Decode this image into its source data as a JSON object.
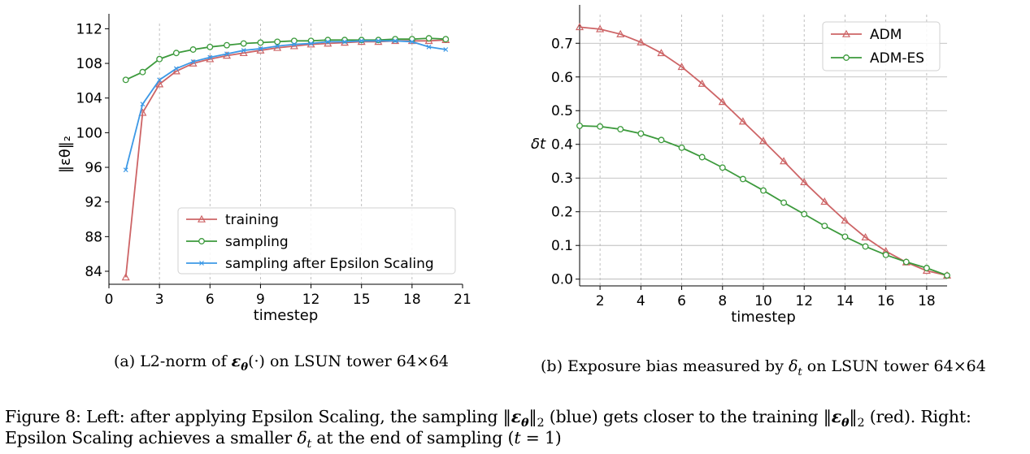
{
  "chart_data": [
    {
      "type": "line",
      "xlabel": "timestep",
      "ylabel": "‖εθ‖₂",
      "xlim": [
        0,
        21
      ],
      "ylim": [
        82.5,
        112.6
      ],
      "xticks": [
        0,
        3,
        6,
        9,
        12,
        15,
        18,
        21
      ],
      "yticks": [
        84,
        88,
        92,
        96,
        100,
        104,
        108,
        112
      ],
      "grid": "vertical dashed",
      "legend_placement": "bottom-right",
      "series": [
        {
          "name": "training",
          "color": "#cd6466",
          "marker": "triangle",
          "x": [
            1,
            2,
            3,
            4,
            5,
            6,
            7,
            8,
            9,
            10,
            11,
            12,
            13,
            14,
            15,
            16,
            17,
            18,
            19,
            20
          ],
          "y": [
            83.3,
            102.3,
            105.6,
            107.1,
            108.0,
            108.5,
            108.9,
            109.2,
            109.5,
            109.8,
            110.0,
            110.2,
            110.3,
            110.4,
            110.5,
            110.5,
            110.6,
            110.6,
            110.6,
            110.7
          ]
        },
        {
          "name": "sampling",
          "color": "#3c9a3c",
          "marker": "circle",
          "x": [
            1,
            2,
            3,
            4,
            5,
            6,
            7,
            8,
            9,
            10,
            11,
            12,
            13,
            14,
            15,
            16,
            17,
            18,
            19,
            20
          ],
          "y": [
            106.1,
            107.0,
            108.5,
            109.2,
            109.6,
            109.9,
            110.1,
            110.3,
            110.4,
            110.5,
            110.6,
            110.6,
            110.7,
            110.7,
            110.7,
            110.7,
            110.8,
            110.8,
            110.9,
            110.8
          ]
        },
        {
          "name": "sampling after Epsilon Scaling",
          "color": "#3d99e6",
          "marker": "x",
          "x": [
            1,
            2,
            3,
            4,
            5,
            6,
            7,
            8,
            9,
            10,
            11,
            12,
            13,
            14,
            15,
            16,
            17,
            18,
            19,
            20
          ],
          "y": [
            95.7,
            103.3,
            106.1,
            107.4,
            108.2,
            108.7,
            109.1,
            109.5,
            109.7,
            110.0,
            110.2,
            110.3,
            110.5,
            110.5,
            110.6,
            110.6,
            110.6,
            110.5,
            109.9,
            109.6
          ]
        }
      ]
    },
    {
      "type": "line",
      "xlabel": "timestep",
      "ylabel": "δt",
      "xlim": [
        1,
        19
      ],
      "ylim": [
        -0.02,
        0.785
      ],
      "xticks": [
        2,
        4,
        6,
        8,
        10,
        12,
        14,
        16,
        18
      ],
      "yticks": [
        0.0,
        0.1,
        0.2,
        0.3,
        0.4,
        0.5,
        0.6,
        0.7
      ],
      "ytick_labels": [
        "0.0",
        "0.1",
        "0.2",
        "0.3",
        "0.4",
        "0.5",
        "0.6",
        "0.7"
      ],
      "grid": "horizontal solid, vertical dashed",
      "legend_placement": "top-right",
      "series": [
        {
          "name": "ADM",
          "color": "#cd6466",
          "marker": "triangle",
          "x": [
            1,
            2,
            3,
            4,
            5,
            6,
            7,
            8,
            9,
            10,
            11,
            12,
            13,
            14,
            15,
            16,
            17,
            18,
            19
          ],
          "y": [
            0.748,
            0.742,
            0.727,
            0.703,
            0.671,
            0.63,
            0.58,
            0.526,
            0.468,
            0.41,
            0.35,
            0.288,
            0.23,
            0.174,
            0.124,
            0.083,
            0.05,
            0.025,
            0.011
          ]
        },
        {
          "name": "ADM-ES",
          "color": "#3c9a3c",
          "marker": "circle",
          "x": [
            1,
            2,
            3,
            4,
            5,
            6,
            7,
            8,
            9,
            10,
            11,
            12,
            13,
            14,
            15,
            16,
            17,
            18,
            19
          ],
          "y": [
            0.455,
            0.453,
            0.445,
            0.432,
            0.413,
            0.39,
            0.362,
            0.331,
            0.297,
            0.263,
            0.227,
            0.193,
            0.158,
            0.126,
            0.097,
            0.072,
            0.051,
            0.033,
            0.011
          ]
        }
      ]
    }
  ],
  "captions": {
    "a_prefix": "(a) L2-norm of ",
    "a_eps": "ε",
    "a_theta": "θ",
    "a_suffix": "(·) on LSUN tower 64×64",
    "b_prefix": "(b) Exposure bias measured by ",
    "b_delta": "δ",
    "b_sub": "t",
    "b_suffix": " on LSUN tower 64×64"
  },
  "figure_caption": {
    "part1": "Figure 8: Left: after applying Epsilon Scaling, the sampling ",
    "norm_open": "‖",
    "eps": "ε",
    "theta": "θ",
    "norm_close": "‖",
    "sub2": "2",
    "part2": " (blue) gets closer to the training ",
    "part3": " (red). Right: Epsilon Scaling achieves a smaller ",
    "delta": "δ",
    "t": "t",
    "part4": " at the end of sampling (",
    "t_eq": "t",
    "part5": " = 1)"
  }
}
